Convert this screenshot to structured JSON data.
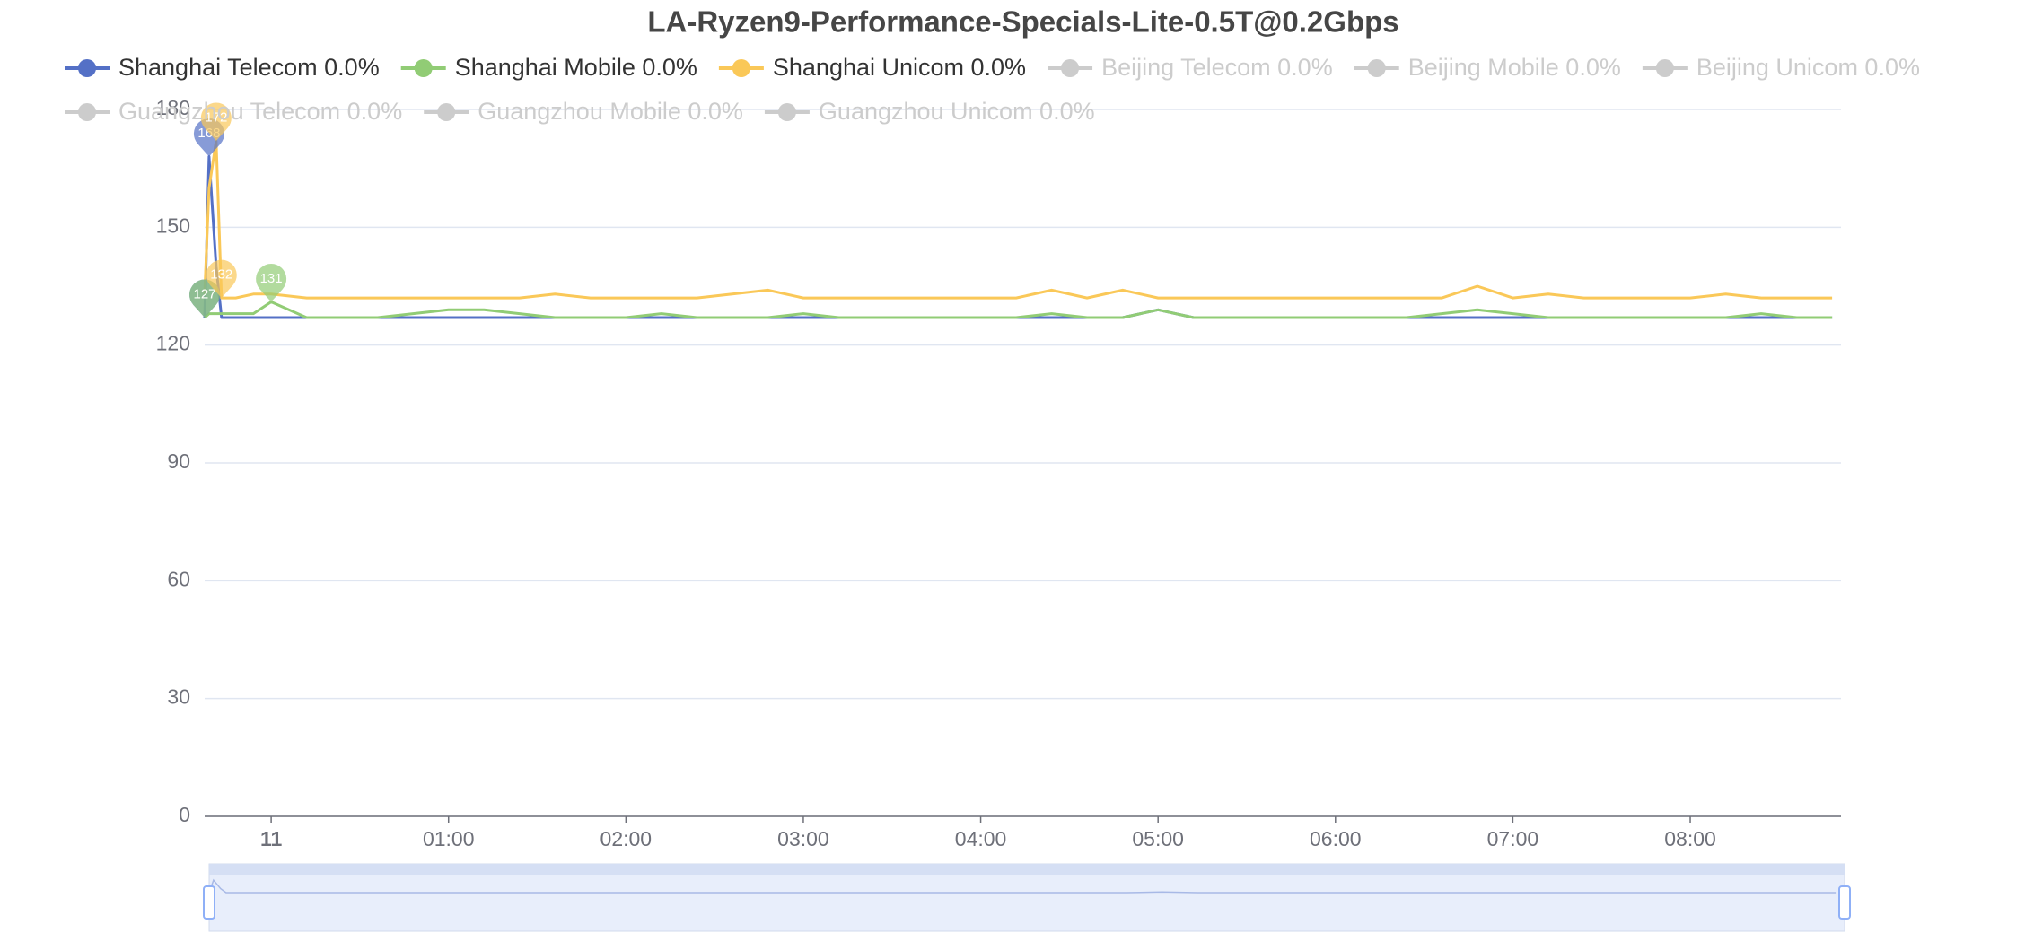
{
  "chart_data": {
    "type": "line",
    "title": "LA-Ryzen9-Performance-Specials-Lite-0.5T@0.2Gbps",
    "x": [
      -0.375,
      -0.35,
      -0.31,
      -0.28,
      -0.2,
      -0.1,
      0,
      0.2,
      0.4,
      0.6,
      0.8,
      1,
      1.2,
      1.4,
      1.6,
      1.8,
      2,
      2.2,
      2.4,
      2.6,
      2.8,
      3,
      3.2,
      3.4,
      3.6,
      3.8,
      4,
      4.2,
      4.4,
      4.6,
      4.8,
      5,
      5.2,
      5.4,
      5.6,
      5.8,
      6,
      6.2,
      6.4,
      6.6,
      6.8,
      7,
      7.2,
      7.4,
      7.6,
      7.8,
      8,
      8.2,
      8.4,
      8.6,
      8.8
    ],
    "xlim": [
      -0.375,
      8.85
    ],
    "xticks": [
      {
        "value": 0,
        "label": "11"
      },
      {
        "value": 1,
        "label": "01:00"
      },
      {
        "value": 2,
        "label": "02:00"
      },
      {
        "value": 3,
        "label": "03:00"
      },
      {
        "value": 4,
        "label": "04:00"
      },
      {
        "value": 5,
        "label": "05:00"
      },
      {
        "value": 6,
        "label": "06:00"
      },
      {
        "value": 7,
        "label": "07:00"
      },
      {
        "value": 8,
        "label": "08:00"
      }
    ],
    "ylim": [
      0,
      180
    ],
    "yticks": [
      0,
      30,
      60,
      90,
      120,
      150,
      180
    ],
    "grid": true,
    "series": [
      {
        "name": "Shanghai Telecom 0.0%",
        "color": "#5470c6",
        "values": [
          127,
          168,
          140,
          127,
          127,
          127,
          127,
          127,
          127,
          127,
          127,
          127,
          127,
          127,
          127,
          127,
          127,
          127,
          127,
          127,
          127,
          127,
          127,
          127,
          127,
          127,
          127,
          127,
          127,
          127,
          127,
          129,
          127,
          127,
          127,
          127,
          127,
          127,
          127,
          127,
          127,
          127,
          127,
          127,
          127,
          127,
          127,
          127,
          127,
          127,
          127
        ],
        "mark_points": [
          {
            "x": -0.35,
            "value": 168
          },
          {
            "x": -0.375,
            "value": 127
          }
        ]
      },
      {
        "name": "Shanghai Mobile 0.0%",
        "color": "#91cc75",
        "values": [
          127,
          128,
          128,
          128,
          128,
          128,
          131,
          127,
          127,
          127,
          128,
          129,
          129,
          128,
          127,
          127,
          127,
          128,
          127,
          127,
          127,
          128,
          127,
          127,
          127,
          127,
          127,
          127,
          128,
          127,
          127,
          129,
          127,
          127,
          127,
          127,
          127,
          127,
          127,
          128,
          129,
          128,
          127,
          127,
          127,
          127,
          127,
          127,
          128,
          127,
          127
        ],
        "mark_points": [
          {
            "x": 0,
            "value": 131
          },
          {
            "x": -0.375,
            "value": 127
          }
        ]
      },
      {
        "name": "Shanghai Unicom 0.0%",
        "color": "#fac858",
        "values": [
          133,
          160,
          172,
          132,
          132,
          133,
          133,
          132,
          132,
          132,
          132,
          132,
          132,
          132,
          133,
          132,
          132,
          132,
          132,
          133,
          134,
          132,
          132,
          132,
          132,
          132,
          132,
          132,
          134,
          132,
          134,
          132,
          132,
          132,
          132,
          132,
          132,
          132,
          132,
          132,
          135,
          132,
          133,
          132,
          132,
          132,
          132,
          133,
          132,
          132,
          132
        ],
        "mark_points": [
          {
            "x": -0.31,
            "value": 172
          },
          {
            "x": -0.28,
            "value": 132
          }
        ]
      },
      {
        "name": "Beijing Telecom 0.0%",
        "hidden": true
      },
      {
        "name": "Beijing Mobile 0.0%",
        "hidden": true
      },
      {
        "name": "Beijing Unicom 0.0%",
        "hidden": true
      },
      {
        "name": "Guangzhou Telecom 0.0%",
        "hidden": true
      },
      {
        "name": "Guangzhou Mobile 0.0%",
        "hidden": true
      },
      {
        "name": "Guangzhou Unicom 0.0%",
        "hidden": true
      }
    ]
  }
}
